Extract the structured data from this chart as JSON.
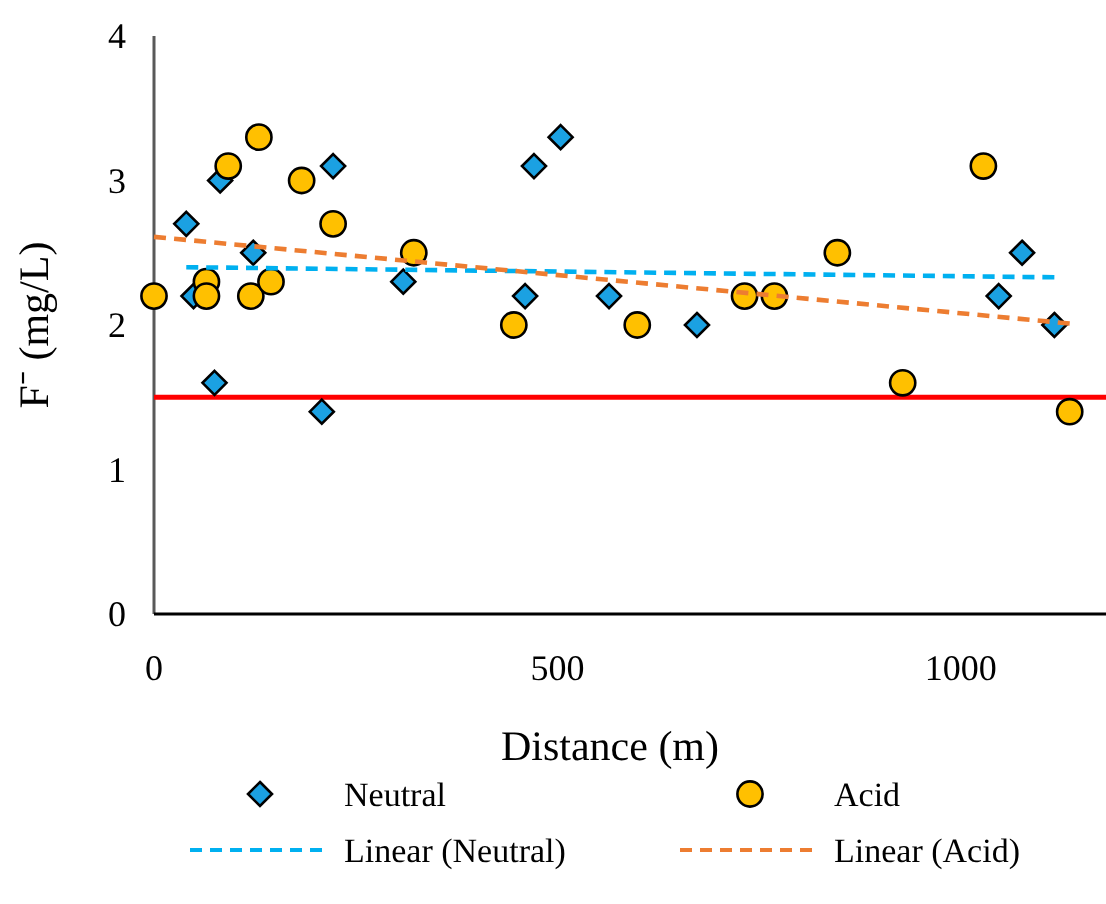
{
  "chart_data": {
    "type": "scatter",
    "xlabel": "Distance (m)",
    "ylabel": "F⁻ (mg/L)",
    "xlim": [
      0,
      1180
    ],
    "xticks": [
      0,
      500,
      1000
    ],
    "ylim": [
      0,
      4
    ],
    "yticks": [
      0,
      1,
      2,
      3,
      4
    ],
    "grid": false,
    "legend": "bottom",
    "series": [
      {
        "name": "Neutral",
        "type": "scatter",
        "marker": "diamond",
        "color": "#1ba1e2",
        "x": [
          40,
          49,
          82,
          75,
          123,
          208,
          222,
          309,
          460,
          471,
          504,
          564,
          673,
          1047,
          1076,
          1116
        ],
        "values": [
          2.7,
          2.2,
          3.0,
          1.6,
          2.5,
          1.4,
          3.1,
          2.3,
          2.2,
          3.1,
          3.3,
          2.2,
          2.0,
          2.2,
          2.5,
          2.0
        ]
      },
      {
        "name": "Acid",
        "type": "scatter",
        "marker": "circle",
        "color": "#ffc000",
        "x": [
          0,
          65,
          65,
          92,
          130,
          120,
          145,
          183,
          222,
          322,
          446,
          599,
          732,
          769,
          847,
          928,
          1028,
          1135
        ],
        "values": [
          2.2,
          2.3,
          2.2,
          3.1,
          3.3,
          2.2,
          2.3,
          3.0,
          2.7,
          2.5,
          2.0,
          2.0,
          2.2,
          2.2,
          2.5,
          1.6,
          3.1,
          1.4
        ]
      },
      {
        "name": "Linear (Neutral)",
        "type": "line",
        "line_style": "dashed",
        "color": "#00b0f0",
        "x": [
          40,
          1116
        ],
        "values": [
          2.4,
          2.33
        ]
      },
      {
        "name": "Linear (Acid)",
        "type": "line",
        "line_style": "dashed",
        "color": "#ed7d31",
        "x": [
          0,
          1135
        ],
        "values": [
          2.61,
          2.01
        ]
      }
    ],
    "ref_lines": [
      {
        "axis": "y",
        "value": 1.5,
        "color": "#ff0000"
      }
    ]
  }
}
